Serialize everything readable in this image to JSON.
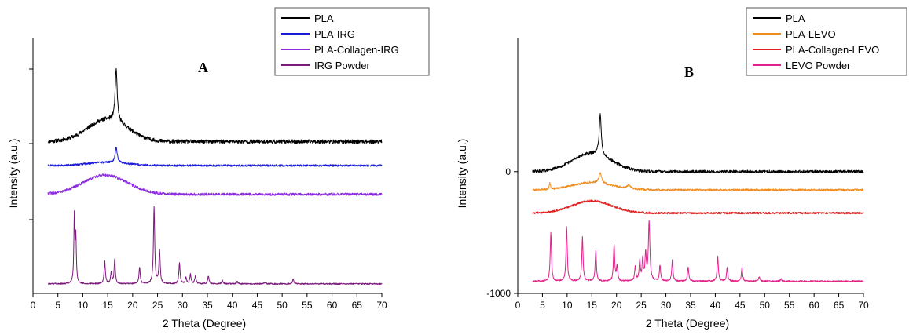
{
  "chart_data": [
    {
      "type": "line",
      "panel_label": "A",
      "xlabel": "2 Theta (Degree)",
      "ylabel": "Intensity (a.u.)",
      "xlim": [
        0,
        70
      ],
      "xticks": [
        0,
        5,
        10,
        15,
        20,
        25,
        30,
        35,
        40,
        45,
        50,
        55,
        60,
        65,
        70
      ],
      "y_tick_labels": [],
      "legend_position": "top-right",
      "series": [
        {
          "name": "PLA",
          "color": "#000000",
          "baseline": 0.33,
          "broad": {
            "center": 15,
            "height": 0.14,
            "width": 4.0
          },
          "peaks": [
            [
              16.7,
              0.32,
              0.25
            ]
          ],
          "noise": 0.012
        },
        {
          "name": "PLA-IRG",
          "color": "#1a1adb",
          "baseline": 0.18,
          "broad": {
            "center": 15,
            "height": 0.02,
            "width": 4.0
          },
          "peaks": [
            [
              16.7,
              0.095,
              0.25
            ]
          ],
          "noise": 0.006
        },
        {
          "name": "PLA-Collagen-IRG",
          "color": "#8a2be2",
          "baseline": 0.0,
          "broad": {
            "center": 14.5,
            "height": 0.12,
            "width": 4.5
          },
          "peaks": [],
          "noise": 0.008
        },
        {
          "name": "IRG Powder",
          "color": "#7b1a7b",
          "baseline": -0.56,
          "broad": null,
          "peaks": [
            [
              8.3,
              0.42,
              0.12
            ],
            [
              8.6,
              0.28,
              0.12
            ],
            [
              14.4,
              0.14,
              0.15
            ],
            [
              15.7,
              0.07,
              0.15
            ],
            [
              16.4,
              0.15,
              0.15
            ],
            [
              21.4,
              0.1,
              0.15
            ],
            [
              24.3,
              0.48,
              0.15
            ],
            [
              25.4,
              0.21,
              0.15
            ],
            [
              29.4,
              0.13,
              0.15
            ],
            [
              30.7,
              0.04,
              0.15
            ],
            [
              31.6,
              0.06,
              0.15
            ],
            [
              32.6,
              0.05,
              0.15
            ],
            [
              35.2,
              0.05,
              0.15
            ],
            [
              38.0,
              0.02,
              0.15
            ],
            [
              41.0,
              0.015,
              0.15
            ],
            [
              46.5,
              0.01,
              0.15
            ],
            [
              52.2,
              0.03,
              0.15
            ]
          ],
          "noise": 0.004
        }
      ]
    },
    {
      "type": "line",
      "panel_label": "B",
      "xlabel": "2 Theta (Degree)",
      "ylabel": "Intensity (a.u.)",
      "xlim": [
        0,
        70
      ],
      "xticks": [
        0,
        5,
        10,
        15,
        20,
        25,
        30,
        35,
        40,
        45,
        50,
        55,
        60,
        65,
        70
      ],
      "y_tick_labels": [
        "0",
        "-1000"
      ],
      "y_tick_values": [
        0,
        -1000
      ],
      "ylim": [
        -1000,
        1100
      ],
      "legend_position": "top-right",
      "series": [
        {
          "name": "PLA",
          "color": "#000000",
          "baseline": 0,
          "broad": {
            "center": 15,
            "height": 150,
            "width": 4.0
          },
          "peaks": [
            [
              16.7,
              330,
              0.25
            ]
          ],
          "noise": 12
        },
        {
          "name": "PLA-LEVO",
          "color": "#f08c1e",
          "baseline": -150,
          "broad": {
            "center": 15,
            "height": 60,
            "width": 4.0
          },
          "peaks": [
            [
              6.5,
              50,
              0.15
            ],
            [
              16.7,
              90,
              0.3
            ],
            [
              22.5,
              30,
              0.5
            ]
          ],
          "noise": 8
        },
        {
          "name": "PLA-Collagen-LEVO",
          "color": "#e02020",
          "baseline": -340,
          "broad": {
            "center": 15,
            "height": 100,
            "width": 4.0
          },
          "peaks": [],
          "noise": 8
        },
        {
          "name": "LEVO Powder",
          "color": "#e0228a",
          "baseline": -900,
          "broad": null,
          "peaks": [
            [
              6.7,
              400,
              0.15
            ],
            [
              9.9,
              450,
              0.15
            ],
            [
              13.1,
              360,
              0.15
            ],
            [
              15.8,
              250,
              0.15
            ],
            [
              19.5,
              300,
              0.15
            ],
            [
              20.1,
              120,
              0.15
            ],
            [
              23.8,
              120,
              0.15
            ],
            [
              24.7,
              160,
              0.15
            ],
            [
              25.3,
              170,
              0.15
            ],
            [
              25.9,
              220,
              0.15
            ],
            [
              26.6,
              490,
              0.18
            ],
            [
              28.8,
              130,
              0.15
            ],
            [
              31.3,
              170,
              0.15
            ],
            [
              34.5,
              120,
              0.15
            ],
            [
              40.5,
              200,
              0.15
            ],
            [
              42.4,
              110,
              0.15
            ],
            [
              45.4,
              110,
              0.15
            ],
            [
              48.9,
              40,
              0.15
            ],
            [
              53.3,
              20,
              0.15
            ]
          ],
          "noise": 6
        }
      ]
    }
  ]
}
